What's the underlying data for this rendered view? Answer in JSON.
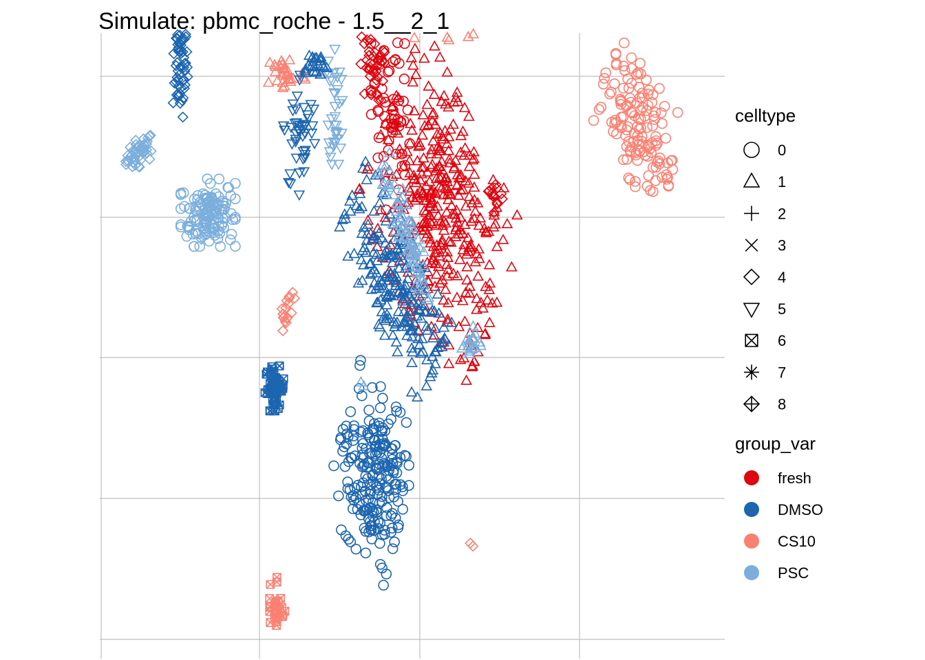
{
  "chart_data": {
    "type": "scatter",
    "title": "Simulate: pbmc_roche - 1.5__2_1",
    "xlabel": "",
    "ylabel": "",
    "grid": true,
    "tick_labels_visible": false,
    "legend_position": "right",
    "legends": [
      {
        "title": "celltype",
        "kind": "shape",
        "items": [
          {
            "label": "0",
            "shape": "circle-open"
          },
          {
            "label": "1",
            "shape": "triangle-open"
          },
          {
            "label": "2",
            "shape": "plus"
          },
          {
            "label": "3",
            "shape": "cross"
          },
          {
            "label": "4",
            "shape": "diamond-open"
          },
          {
            "label": "5",
            "shape": "triangle-down-open"
          },
          {
            "label": "6",
            "shape": "square-cross"
          },
          {
            "label": "7",
            "shape": "asterisk"
          },
          {
            "label": "8",
            "shape": "diamond-plus"
          }
        ]
      },
      {
        "title": "group_var",
        "kind": "color",
        "items": [
          {
            "label": "fresh",
            "color": "#DE0610"
          },
          {
            "label": "DMSO",
            "color": "#1C65AF"
          },
          {
            "label": "CS10",
            "color": "#FA8072"
          },
          {
            "label": "PSC",
            "color": "#7BAEDC"
          }
        ]
      }
    ],
    "clusters": [
      {
        "group": "PSC",
        "celltype": "4",
        "x": -2.85,
        "y": 1.46,
        "sx": 0.12,
        "sy": 0.05,
        "rot": 15,
        "n": 45
      },
      {
        "group": "DMSO",
        "celltype": "4",
        "x": -2.2,
        "y": 2.11,
        "sx": 0.06,
        "sy": 0.2,
        "rot": 0,
        "n": 70
      },
      {
        "group": "PSC",
        "celltype": "0",
        "x": -1.75,
        "y": 1.03,
        "sx": 0.22,
        "sy": 0.12,
        "rot": 0,
        "n": 130
      },
      {
        "group": "PSC",
        "celltype": "4",
        "x": -1.85,
        "y": 0.85,
        "sx": 0.01,
        "sy": 0.01,
        "rot": 0,
        "n": 2
      },
      {
        "group": "DMSO",
        "celltype": "6",
        "x": -0.67,
        "y": -0.22,
        "sx": 0.08,
        "sy": 0.08,
        "rot": 0,
        "n": 55
      },
      {
        "group": "fresh",
        "celltype": "3",
        "x": -0.25,
        "y": 3.54,
        "sx": 0.3,
        "sy": 0.18,
        "rot": 0,
        "n": 70
      },
      {
        "group": "CS10",
        "celltype": "3",
        "x": 0.05,
        "y": 3.7,
        "sx": 0.22,
        "sy": 0.18,
        "rot": 0,
        "n": 80
      },
      {
        "group": "DMSO",
        "celltype": "3",
        "x": -0.3,
        "y": 3.5,
        "sx": 0.28,
        "sy": 0.2,
        "rot": 0,
        "n": 70
      },
      {
        "group": "PSC",
        "celltype": "3",
        "x": -0.35,
        "y": 3.45,
        "sx": 0.28,
        "sy": 0.2,
        "rot": 0,
        "n": 90
      },
      {
        "group": "CS10",
        "celltype": "1",
        "x": -0.5,
        "y": 2.02,
        "sx": 0.16,
        "sy": 0.07,
        "rot": 0,
        "n": 30
      },
      {
        "group": "DMSO",
        "celltype": "5",
        "x": -0.25,
        "y": 1.6,
        "sx": 0.14,
        "sy": 0.22,
        "rot": 0,
        "n": 45
      },
      {
        "group": "PSC",
        "celltype": "5",
        "x": 0.3,
        "y": 1.8,
        "sx": 0.06,
        "sy": 0.22,
        "rot": 5,
        "n": 35
      },
      {
        "group": "DMSO",
        "celltype": "1",
        "x": -0.05,
        "y": 2.08,
        "sx": 0.12,
        "sy": 0.05,
        "rot": 0,
        "n": 25
      },
      {
        "group": "CS10",
        "celltype": "4",
        "x": -0.5,
        "y": 0.35,
        "sx": 0.05,
        "sy": 0.08,
        "rot": -35,
        "n": 18
      },
      {
        "group": "fresh",
        "celltype": "4",
        "x": 0.9,
        "y": 2.05,
        "sx": 0.1,
        "sy": 0.12,
        "rot": 0,
        "n": 40
      },
      {
        "group": "fresh",
        "celltype": "0",
        "x": 1.2,
        "y": 1.75,
        "sx": 0.16,
        "sy": 0.35,
        "rot": 0,
        "n": 60
      },
      {
        "group": "fresh",
        "celltype": "1",
        "x": 2.0,
        "y": 1.0,
        "sx": 0.55,
        "sy": 0.42,
        "rot": -42,
        "n": 380
      },
      {
        "group": "fresh",
        "celltype": "4",
        "x": 0.8,
        "y": 2.6,
        "sx": 0.12,
        "sy": 0.08,
        "rot": 0,
        "n": 25
      },
      {
        "group": "CS10",
        "celltype": "1",
        "x": 1.75,
        "y": 2.45,
        "sx": 0.4,
        "sy": 0.1,
        "rot": -8,
        "n": 90
      },
      {
        "group": "DMSO",
        "celltype": "1",
        "x": 1.25,
        "y": 0.55,
        "sx": 0.45,
        "sy": 0.2,
        "rot": -42,
        "n": 220
      },
      {
        "group": "PSC",
        "celltype": "1",
        "x": 1.45,
        "y": 0.9,
        "sx": 0.3,
        "sy": 0.07,
        "rot": -52,
        "n": 80
      },
      {
        "group": "PSC",
        "celltype": "1",
        "x": 2.5,
        "y": 0.1,
        "sx": 0.08,
        "sy": 0.06,
        "rot": 0,
        "n": 18
      },
      {
        "group": "fresh",
        "celltype": "4",
        "x": 2.9,
        "y": 1.15,
        "sx": 0.06,
        "sy": 0.06,
        "rot": 0,
        "n": 12
      },
      {
        "group": "fresh",
        "celltype": "2",
        "x": 1.0,
        "y": 4.84,
        "sx": 0.17,
        "sy": 0.2,
        "rot": 0,
        "n": 70
      },
      {
        "group": "CS10",
        "celltype": "2",
        "x": 1.55,
        "y": 4.38,
        "sx": 0.12,
        "sy": 0.17,
        "rot": 0,
        "n": 55
      },
      {
        "group": "PSC",
        "celltype": "7",
        "x": 0.45,
        "y": 5.35,
        "sx": 0.15,
        "sy": 0.07,
        "rot": 0,
        "n": 30
      },
      {
        "group": "CS10",
        "celltype": "0",
        "x": 0.58,
        "y": 5.1,
        "sx": 0.05,
        "sy": 0.07,
        "rot": 0,
        "n": 12
      },
      {
        "group": "DMSO",
        "celltype": "7",
        "x": 0.75,
        "y": 5.5,
        "sx": 0.05,
        "sy": 0.05,
        "rot": 0,
        "n": 10
      },
      {
        "group": "DMSO",
        "celltype": "2",
        "x": 3.4,
        "y": 3.65,
        "sx": 0.12,
        "sy": 0.15,
        "rot": 0,
        "n": 55
      },
      {
        "group": "PSC",
        "celltype": "2",
        "x": 3.8,
        "y": 3.5,
        "sx": 0.15,
        "sy": 0.15,
        "rot": 0,
        "n": 55
      },
      {
        "group": "DMSO",
        "celltype": "4",
        "x": 3.0,
        "y": 4.1,
        "sx": 0.02,
        "sy": 0.02,
        "rot": 0,
        "n": 3
      },
      {
        "group": "PSC",
        "celltype": "4",
        "x": 5.9,
        "y": 3.0,
        "sx": 0.06,
        "sy": 0.04,
        "rot": 0,
        "n": 20
      },
      {
        "group": "CS10",
        "celltype": "0",
        "x": 5.2,
        "y": 1.65,
        "sx": 0.32,
        "sy": 0.2,
        "rot": -30,
        "n": 140
      },
      {
        "group": "DMSO",
        "celltype": "0",
        "x": 0.9,
        "y": -0.82,
        "sx": 0.28,
        "sy": 0.3,
        "rot": -30,
        "n": 220
      },
      {
        "group": "PSC",
        "celltype": "1",
        "x": 0.75,
        "y": -0.2,
        "sx": 0.02,
        "sy": 0.02,
        "rot": 0,
        "n": 2
      },
      {
        "group": "CS10",
        "celltype": "6",
        "x": -0.65,
        "y": -1.75,
        "sx": 0.07,
        "sy": 0.12,
        "rot": 0,
        "n": 30
      },
      {
        "group": "CS10",
        "celltype": "4",
        "x": 2.5,
        "y": -1.35,
        "sx": 0.02,
        "sy": 0.02,
        "rot": 0,
        "n": 2
      }
    ]
  }
}
